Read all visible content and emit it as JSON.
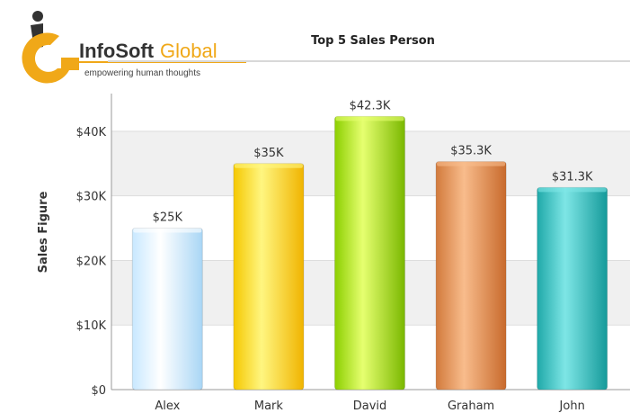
{
  "logo": {
    "brand_part1": "InfoSoft",
    "brand_part2": "Global",
    "tagline": "empowering human thoughts"
  },
  "colors": {
    "brand_gold": "#f0a818",
    "brand_dark": "#333333",
    "grid_band": "#f0f0f0",
    "axis": "#999999"
  },
  "chart_data": {
    "type": "bar",
    "title": "Top 5 Sales Person",
    "xlabel": "",
    "ylabel": "Sales Figure",
    "ylim": [
      0,
      45000
    ],
    "yticks": [
      0,
      10000,
      20000,
      30000,
      40000
    ],
    "ytick_labels": [
      "$0",
      "$10K",
      "$20K",
      "$30K",
      "$40K"
    ],
    "categories": [
      "Alex",
      "Mark",
      "David",
      "Graham",
      "John"
    ],
    "values": [
      25000,
      35000,
      42300,
      35300,
      31300
    ],
    "data_labels": [
      "$25K",
      "$35K",
      "$42.3K",
      "$35.3K",
      "$31.3K"
    ],
    "bar_colors": [
      [
        "#c8e8ff",
        "#ffffff",
        "#a9d6f5"
      ],
      [
        "#f5c800",
        "#fff680",
        "#f0b400"
      ],
      [
        "#8ccf00",
        "#e6ff70",
        "#7ab800"
      ],
      [
        "#d27a3c",
        "#f8bc8c",
        "#c86a2c"
      ],
      [
        "#1fa8a8",
        "#7ee6e6",
        "#159a9a"
      ]
    ],
    "legend": "none",
    "grid": "horizontal bands"
  }
}
